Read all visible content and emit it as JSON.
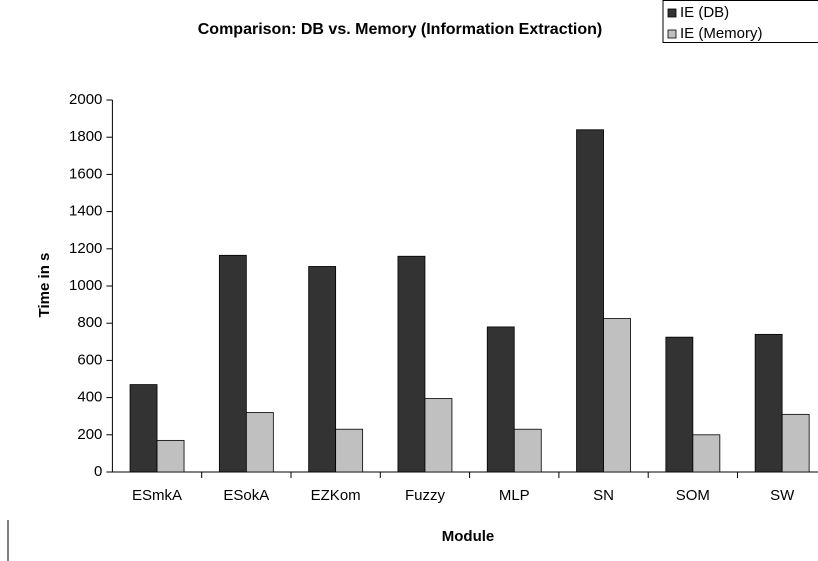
{
  "chart_data": {
    "type": "bar",
    "title": "Comparison: DB vs. Memory (Information Extraction)",
    "x_label": "Module",
    "y_label": "Time in s",
    "categories": [
      "ESmkA",
      "ESokA",
      "EZKom",
      "Fuzzy",
      "MLP",
      "SN",
      "SOM",
      "SW"
    ],
    "series": [
      {
        "name": "IE (DB)",
        "color": "#333333",
        "values": [
          470,
          1165,
          1105,
          1160,
          780,
          1840,
          725,
          740
        ]
      },
      {
        "name": "IE (Memory)",
        "color": "#c0c0c0",
        "values": [
          170,
          320,
          230,
          395,
          230,
          825,
          200,
          310
        ]
      }
    ],
    "ylim": [
      0,
      2000
    ],
    "yticks": [
      0,
      200,
      400,
      600,
      800,
      1000,
      1200,
      1400,
      1600,
      1800,
      2000
    ],
    "grid": false,
    "legend": "top-right"
  }
}
